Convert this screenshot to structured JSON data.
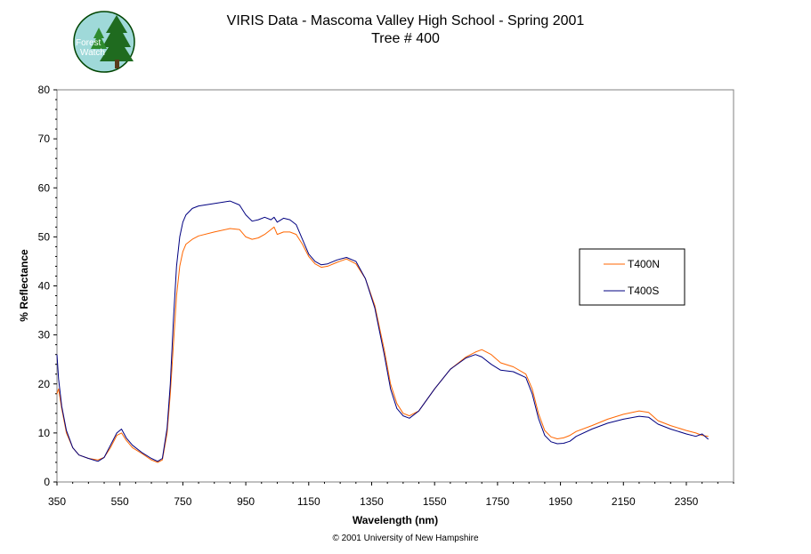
{
  "header": {
    "title_line1": "VIRIS Data - Mascoma Valley High School - Spring 2001",
    "title_line2": "Tree # 400"
  },
  "logo": {
    "text_line1": "Forest",
    "text_line2": "Watch"
  },
  "footer": {
    "copyright": "© 2001 University of New Hampshire"
  },
  "colors": {
    "T400N": "#ff6600",
    "T400S": "#000080",
    "plot_border": "#808080"
  },
  "chart_data": {
    "type": "line",
    "title": "VIRIS Data - Mascoma Valley High School - Spring 2001",
    "subtitle": "Tree # 400",
    "xlabel": "Wavelength (nm)",
    "ylabel": "% Reflectance",
    "xlim": [
      350,
      2500
    ],
    "ylim": [
      0,
      80
    ],
    "xticks": [
      350,
      550,
      750,
      950,
      1150,
      1350,
      1550,
      1750,
      1950,
      2150,
      2350
    ],
    "yticks": [
      0,
      10,
      20,
      30,
      40,
      50,
      60,
      70,
      80
    ],
    "grid": false,
    "legend_position": "right",
    "series": [
      {
        "name": "T400N",
        "x": [
          350,
          355,
          365,
          380,
          400,
          420,
          450,
          480,
          500,
          520,
          540,
          555,
          570,
          590,
          620,
          650,
          670,
          685,
          700,
          710,
          720,
          730,
          740,
          750,
          760,
          780,
          800,
          850,
          900,
          930,
          950,
          970,
          990,
          1010,
          1030,
          1040,
          1050,
          1070,
          1090,
          1110,
          1130,
          1150,
          1170,
          1190,
          1210,
          1240,
          1270,
          1300,
          1330,
          1360,
          1390,
          1410,
          1430,
          1450,
          1470,
          1500,
          1550,
          1600,
          1650,
          1680,
          1700,
          1730,
          1760,
          1800,
          1840,
          1860,
          1880,
          1900,
          1920,
          1940,
          1960,
          1980,
          2000,
          2050,
          2100,
          2150,
          2200,
          2230,
          2260,
          2300,
          2350,
          2380,
          2400,
          2420
        ],
        "y": [
          18,
          19,
          15,
          10,
          7,
          5.5,
          4.8,
          4.5,
          5,
          7,
          9.5,
          10,
          8.5,
          7,
          5.8,
          4.5,
          4,
          4.5,
          10,
          18,
          28,
          38,
          44,
          47,
          48.5,
          49.5,
          50.2,
          51,
          51.7,
          51.5,
          50,
          49.5,
          49.8,
          50.5,
          51.5,
          52,
          50.5,
          51,
          51,
          50.5,
          48.5,
          46,
          44.5,
          43.8,
          44,
          44.8,
          45.5,
          44.5,
          41.5,
          36,
          27,
          20,
          16,
          14,
          13.5,
          14.5,
          19,
          23,
          25.5,
          26.5,
          27,
          26,
          24.3,
          23.5,
          22,
          19,
          14,
          10.5,
          9.2,
          8.8,
          9,
          9.5,
          10.3,
          11.5,
          12.8,
          13.8,
          14.5,
          14.2,
          12.5,
          11.5,
          10.5,
          10,
          9.5,
          9.3
        ]
      },
      {
        "name": "T400S",
        "x": [
          350,
          355,
          365,
          380,
          400,
          420,
          450,
          480,
          500,
          520,
          540,
          555,
          570,
          590,
          620,
          650,
          670,
          685,
          700,
          710,
          720,
          730,
          740,
          750,
          760,
          780,
          800,
          850,
          900,
          930,
          950,
          970,
          990,
          1010,
          1030,
          1040,
          1050,
          1070,
          1090,
          1110,
          1130,
          1150,
          1170,
          1190,
          1210,
          1240,
          1270,
          1300,
          1330,
          1360,
          1390,
          1410,
          1430,
          1450,
          1470,
          1500,
          1550,
          1600,
          1650,
          1680,
          1700,
          1730,
          1760,
          1800,
          1840,
          1860,
          1880,
          1900,
          1920,
          1940,
          1960,
          1980,
          2000,
          2050,
          2100,
          2150,
          2200,
          2230,
          2260,
          2300,
          2350,
          2380,
          2400,
          2420
        ],
        "y": [
          26,
          21,
          15.5,
          10.5,
          7,
          5.5,
          4.8,
          4.2,
          5,
          7.5,
          10,
          10.8,
          9,
          7.5,
          6,
          4.8,
          4.2,
          4.8,
          11,
          20,
          33,
          44,
          50,
          53,
          54.5,
          55.8,
          56.3,
          56.8,
          57.3,
          56.5,
          54.5,
          53.2,
          53.5,
          54,
          53.5,
          54,
          53,
          53.8,
          53.5,
          52.5,
          49.5,
          46.5,
          45,
          44.3,
          44.5,
          45.3,
          45.8,
          45,
          41.5,
          35.5,
          26,
          19,
          15,
          13.5,
          13,
          14.5,
          19,
          23,
          25.3,
          26,
          25.5,
          24,
          22.8,
          22.5,
          21.3,
          18,
          13,
          9.5,
          8.2,
          7.8,
          7.9,
          8.3,
          9.3,
          10.8,
          12,
          12.8,
          13.4,
          13.2,
          11.8,
          10.8,
          9.8,
          9.3,
          9.8,
          8.7
        ]
      }
    ]
  }
}
